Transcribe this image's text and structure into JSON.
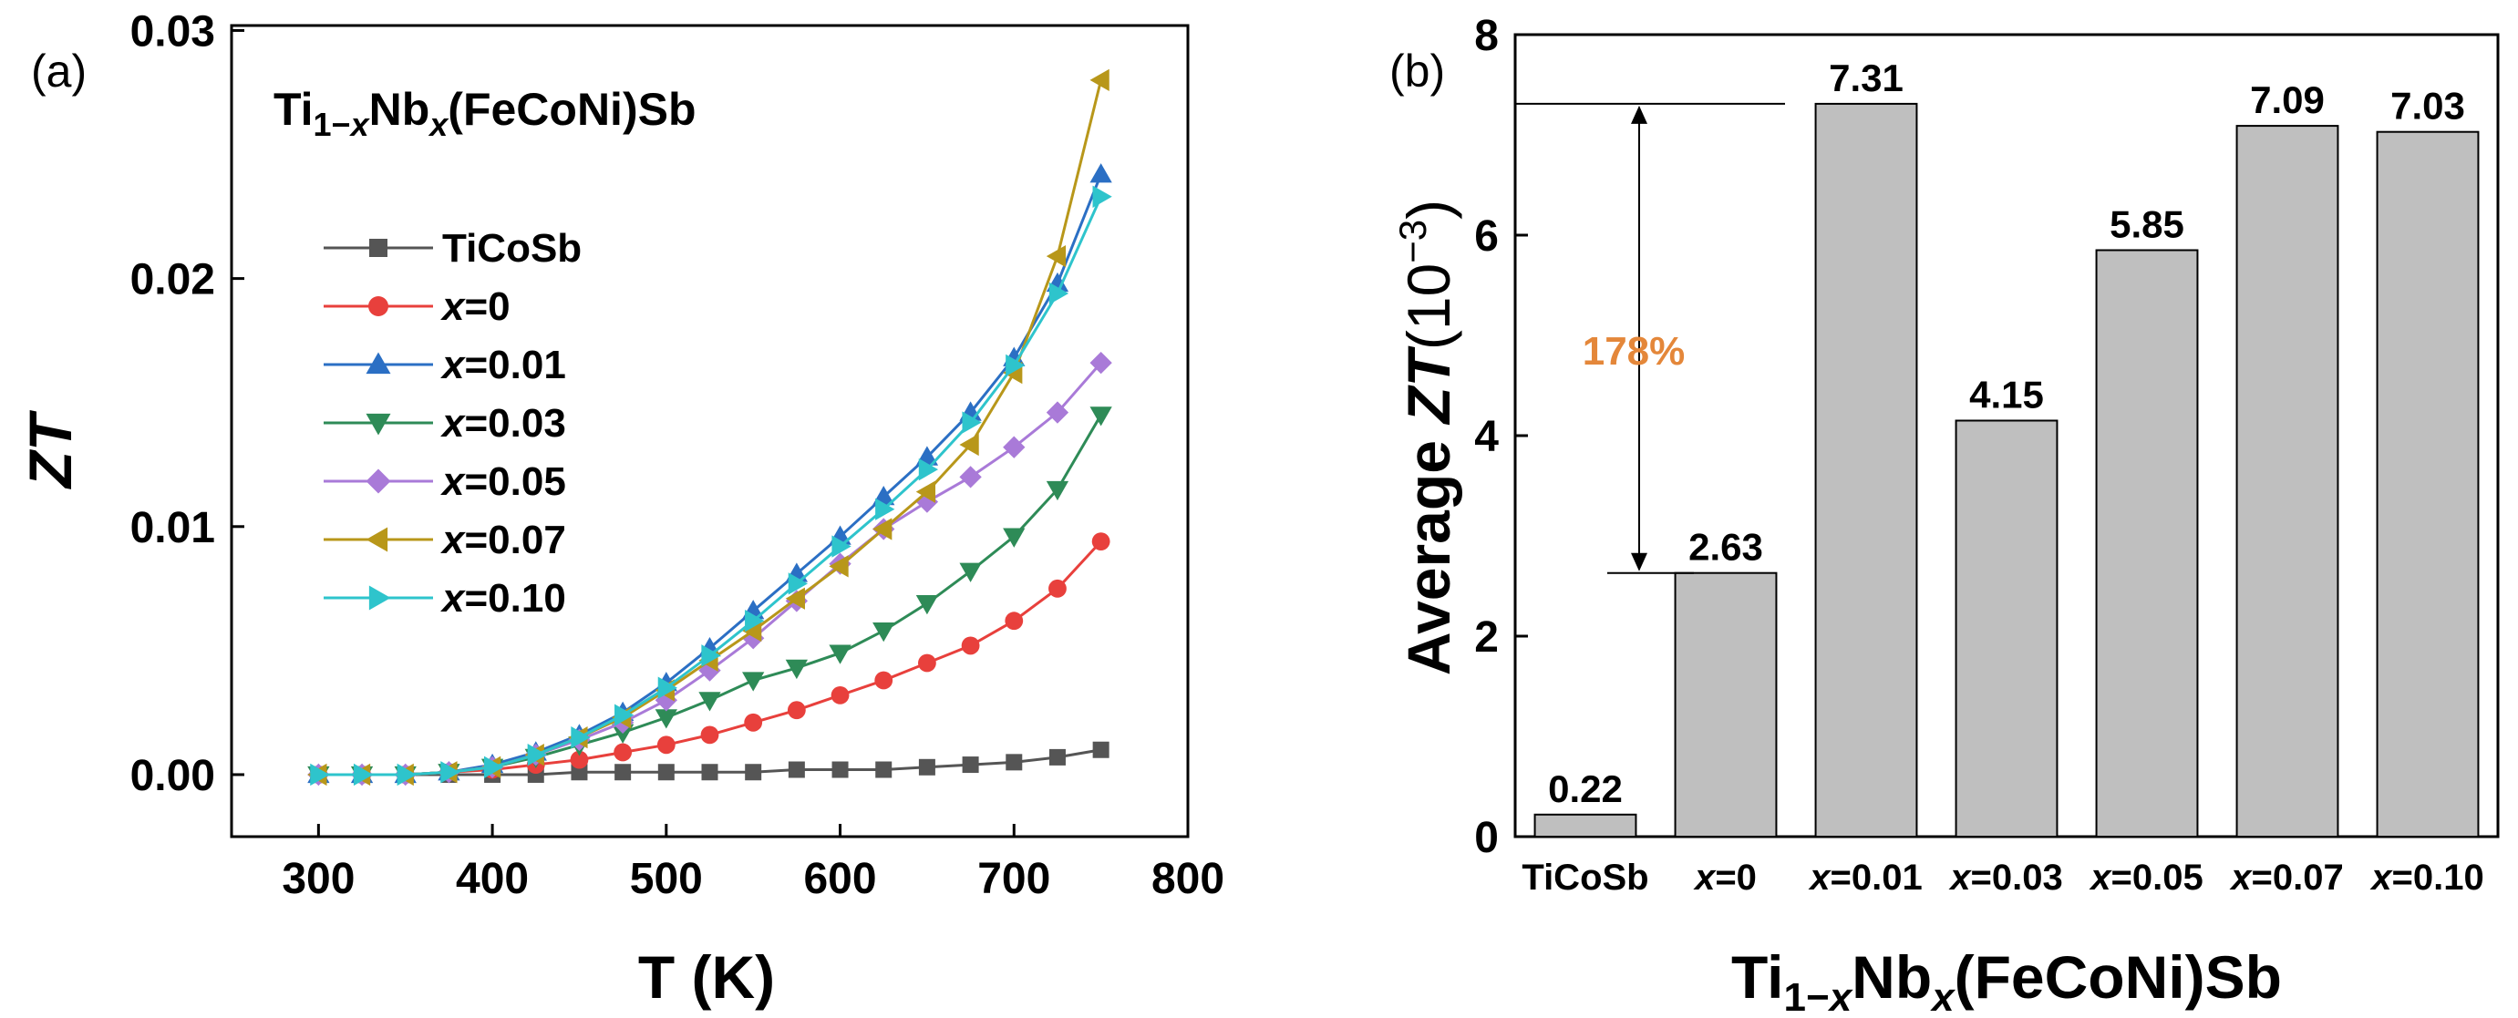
{
  "chart_data": [
    {
      "type": "line",
      "panel_label": "(a)",
      "title_parts": [
        "Ti",
        "1−",
        "x",
        "Nb",
        "x",
        "(FeCoNi)Sb"
      ],
      "xlabel": "T (K)",
      "ylabel": "ZT",
      "xlim": [
        250,
        800
      ],
      "ylim": [
        -0.0025,
        0.0302
      ],
      "xticks": [
        "300",
        "400",
        "500",
        "600",
        "700",
        "800"
      ],
      "yticks": [
        "0.00",
        "0.01",
        "0.02",
        "0.03"
      ],
      "x": [
        300,
        325,
        350,
        375,
        400,
        425,
        450,
        475,
        500,
        525,
        550,
        575,
        600,
        625,
        650,
        675,
        700,
        725,
        750
      ],
      "series": [
        {
          "name": "TiCoSb",
          "name_prefix": "",
          "name_rest": "TiCoSb",
          "color": "#555555",
          "marker": "square",
          "values": [
            0.0,
            0.0,
            0.0,
            0.0,
            0.0,
            0.0,
            0.0001,
            0.0001,
            0.0001,
            0.0001,
            0.0001,
            0.0002,
            0.0002,
            0.0002,
            0.0003,
            0.0004,
            0.0005,
            0.0007,
            0.001
          ]
        },
        {
          "name": "x=0",
          "name_prefix": "x",
          "name_rest": "=0",
          "color": "#e8403c",
          "marker": "circle",
          "values": [
            0.0,
            0.0,
            0.0,
            0.0001,
            0.0002,
            0.0004,
            0.0006,
            0.0009,
            0.0012,
            0.0016,
            0.0021,
            0.0026,
            0.0032,
            0.0038,
            0.0045,
            0.0052,
            0.0062,
            0.0075,
            0.0094
          ]
        },
        {
          "name": "x=0.01",
          "name_prefix": "x",
          "name_rest": "=0.01",
          "color": "#2b6fc4",
          "marker": "triangle-up",
          "values": [
            0.0,
            0.0,
            0.0,
            0.0001,
            0.0004,
            0.0009,
            0.0016,
            0.0025,
            0.0037,
            0.0051,
            0.0066,
            0.0081,
            0.0096,
            0.0112,
            0.0128,
            0.0146,
            0.0168,
            0.0198,
            0.0242
          ]
        },
        {
          "name": "x=0.03",
          "name_prefix": "x",
          "name_rest": "=0.03",
          "color": "#2e8b57",
          "marker": "triangle-down",
          "values": [
            0.0,
            0.0,
            0.0,
            0.0001,
            0.0003,
            0.0007,
            0.0012,
            0.0017,
            0.0023,
            0.003,
            0.0038,
            0.0043,
            0.0049,
            0.0058,
            0.0069,
            0.0082,
            0.0096,
            0.0115,
            0.0145
          ]
        },
        {
          "name": "x=0.05",
          "name_prefix": "x",
          "name_rest": "=0.05",
          "color": "#a97ad8",
          "marker": "diamond",
          "values": [
            0.0,
            0.0,
            0.0,
            0.0001,
            0.0003,
            0.0008,
            0.0014,
            0.0021,
            0.003,
            0.0042,
            0.0055,
            0.007,
            0.0085,
            0.0099,
            0.011,
            0.012,
            0.0132,
            0.0146,
            0.0166
          ]
        },
        {
          "name": "x=0.07",
          "name_prefix": "x",
          "name_rest": "=0.07",
          "color": "#b8971a",
          "marker": "triangle-left",
          "values": [
            0.0,
            0.0,
            0.0,
            0.0001,
            0.0003,
            0.0008,
            0.0015,
            0.0023,
            0.0034,
            0.0046,
            0.0058,
            0.0071,
            0.0084,
            0.0099,
            0.0114,
            0.0133,
            0.0162,
            0.0209,
            0.028
          ]
        },
        {
          "name": "x=0.10",
          "name_prefix": "x",
          "name_rest": "=0.10",
          "color": "#2ec4cc",
          "marker": "triangle-right",
          "values": [
            0.0,
            0.0,
            0.0,
            0.0001,
            0.0003,
            0.0008,
            0.0015,
            0.0024,
            0.0035,
            0.0048,
            0.0062,
            0.0077,
            0.0092,
            0.0107,
            0.0123,
            0.0142,
            0.0165,
            0.0194,
            0.0233
          ]
        }
      ]
    },
    {
      "type": "bar",
      "panel_label": "(b)",
      "ylabel_prefix": "Average ",
      "ylabel_var": "ZT",
      "ylabel_unit": "(10",
      "ylabel_exp": "−3",
      "ylabel_close": ")",
      "xlabel_parts": [
        "Ti",
        "1−",
        "x",
        "Nb",
        "x",
        "(FeCoNi)Sb"
      ],
      "ylim": [
        0,
        8
      ],
      "yticks": [
        "0",
        "2",
        "4",
        "6",
        "8"
      ],
      "categories": [
        {
          "prefix": "",
          "rest": "TiCoSb"
        },
        {
          "prefix": "x",
          "rest": "=0"
        },
        {
          "prefix": "x",
          "rest": "=0.01"
        },
        {
          "prefix": "x",
          "rest": "=0.03"
        },
        {
          "prefix": "x",
          "rest": "=0.05"
        },
        {
          "prefix": "x",
          "rest": "=0.07"
        },
        {
          "prefix": "x",
          "rest": "=0.10"
        }
      ],
      "values": [
        0.22,
        2.63,
        7.31,
        4.15,
        5.85,
        7.09,
        7.03
      ],
      "value_labels": [
        "0.22",
        "2.63",
        "7.31",
        "4.15",
        "5.85",
        "7.09",
        "7.03"
      ],
      "bar_color": "#bfbfbf",
      "annotation": {
        "text": "178%",
        "color": "#e4873a",
        "from_value": 2.63,
        "to_value": 7.31
      }
    }
  ]
}
